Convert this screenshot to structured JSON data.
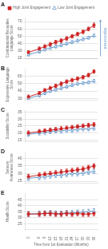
{
  "chart_data": [
    {
      "type": "line",
      "title": "A",
      "ylabel": "Combinatorial Receptive\nLanguage Score",
      "x": [
        0,
        6,
        9,
        12,
        15,
        18,
        21,
        24,
        27,
        30,
        33,
        36
      ],
      "xlim": [
        -2,
        38
      ],
      "xticks": [
        0,
        6,
        9,
        12,
        15,
        18,
        21,
        24,
        27,
        30,
        33,
        36
      ],
      "ylim": [
        20,
        75
      ],
      "yticks": [
        20,
        30,
        40,
        50,
        60,
        70
      ],
      "grid": true,
      "tick_labels": "y",
      "legend": "upper left",
      "annotations": [
        {
          "text": "Improvement",
          "color": "#6699cc"
        }
      ],
      "series": [
        {
          "name": "High Joint Engagement",
          "color": "#cc2222",
          "marker": "square",
          "values": [
            28,
            33,
            36,
            39,
            42,
            44,
            47,
            50,
            53,
            56,
            60,
            65
          ],
          "errors": [
            2.5,
            2.5,
            2.5,
            2.5,
            2.5,
            2.5,
            2.5,
            2.5,
            2.5,
            2.5,
            2.5,
            3.0
          ]
        },
        {
          "name": "Low Joint Engagement",
          "color": "#6699cc",
          "marker": "triangle-open",
          "values": [
            25,
            29,
            32,
            34,
            36,
            38,
            40,
            42,
            44,
            46,
            48,
            51
          ],
          "errors": [
            2.0,
            2.0,
            2.0,
            2.0,
            2.0,
            2.0,
            2.0,
            2.0,
            2.0,
            2.0,
            2.0,
            2.0
          ]
        }
      ]
    },
    {
      "type": "line",
      "title": "B",
      "ylabel": "Expressive Language\nScore",
      "x": [
        0,
        6,
        9,
        12,
        15,
        18,
        21,
        24,
        27,
        30,
        33,
        36
      ],
      "xlim": [
        -2,
        38
      ],
      "xticks": [
        0,
        6,
        9,
        12,
        15,
        18,
        21,
        24,
        27,
        30,
        33,
        36
      ],
      "ylim": [
        28,
        70
      ],
      "yticks": [
        30,
        40,
        50,
        60
      ],
      "grid": true,
      "tick_labels": "y",
      "series": [
        {
          "name": "High Joint Engagement",
          "color": "#cc2222",
          "marker": "square",
          "values": [
            32,
            37,
            41,
            44,
            47,
            50,
            53,
            55,
            57,
            59,
            62,
            67
          ],
          "errors": [
            2.5,
            2.5,
            2.5,
            2.5,
            2.5,
            2.5,
            2.5,
            2.5,
            2.5,
            2.5,
            2.5,
            2.5
          ]
        },
        {
          "name": "Low Joint Engagement",
          "color": "#6699cc",
          "marker": "triangle-open",
          "values": [
            30,
            34,
            37,
            40,
            42,
            44,
            46,
            48,
            50,
            51,
            52,
            54
          ],
          "errors": [
            2.0,
            2.0,
            2.0,
            2.0,
            2.0,
            2.0,
            2.0,
            2.0,
            2.0,
            2.0,
            2.0,
            2.0
          ]
        }
      ]
    },
    {
      "type": "line",
      "title": "C",
      "ylabel": "Sociability Score",
      "x": [
        0,
        6,
        9,
        12,
        15,
        18,
        21,
        24,
        27,
        30,
        33,
        36
      ],
      "xlim": [
        -2,
        38
      ],
      "xticks": [
        0,
        6,
        9,
        12,
        15,
        18,
        21,
        24,
        27,
        30,
        33,
        36
      ],
      "ylim": [
        14,
        36
      ],
      "yticks": [
        15,
        20,
        25,
        30,
        35
      ],
      "grid": true,
      "tick_labels": "y",
      "series": [
        {
          "name": "High Joint Engagement",
          "color": "#cc2222",
          "marker": "square",
          "values": [
            20,
            21,
            21.5,
            22,
            22.5,
            23,
            23.5,
            24,
            24.5,
            25,
            25.5,
            26
          ],
          "errors": [
            1.5,
            1.5,
            1.5,
            1.5,
            1.5,
            1.5,
            1.5,
            1.5,
            1.5,
            1.5,
            1.5,
            1.5
          ]
        },
        {
          "name": "Low Joint Engagement",
          "color": "#6699cc",
          "marker": "triangle-open",
          "values": [
            19,
            20,
            20.5,
            21,
            21.5,
            21.5,
            22,
            22,
            22.5,
            23,
            23,
            23.5
          ],
          "errors": [
            1.5,
            1.5,
            1.5,
            1.5,
            1.5,
            1.5,
            1.5,
            1.5,
            1.5,
            1.5,
            1.5,
            1.5
          ]
        }
      ]
    },
    {
      "type": "line",
      "title": "D",
      "ylabel": "Sensory\nAwareness Score",
      "x": [
        0,
        6,
        9,
        12,
        15,
        18,
        21,
        24,
        27,
        30,
        33,
        36
      ],
      "xlim": [
        -2,
        38
      ],
      "xticks": [
        0,
        6,
        9,
        12,
        15,
        18,
        21,
        24,
        27,
        30,
        33,
        36
      ],
      "ylim": [
        24,
        44
      ],
      "yticks": [
        25,
        30,
        35,
        40
      ],
      "grid": true,
      "tick_labels": "y",
      "series": [
        {
          "name": "High Joint Engagement",
          "color": "#cc2222",
          "marker": "square",
          "values": [
            28,
            29,
            29.5,
            30,
            30.5,
            31,
            31.5,
            32,
            32.5,
            33,
            34,
            35
          ],
          "errors": [
            1.5,
            1.5,
            1.5,
            1.5,
            1.5,
            1.5,
            1.5,
            1.5,
            1.5,
            1.5,
            1.5,
            1.5
          ]
        },
        {
          "name": "Low Joint Engagement",
          "color": "#6699cc",
          "marker": "triangle-open",
          "values": [
            27,
            27.5,
            28,
            28.5,
            29,
            29,
            29.5,
            30,
            30,
            30.5,
            31,
            31.5
          ],
          "errors": [
            1.5,
            1.5,
            1.5,
            1.5,
            1.5,
            1.5,
            1.5,
            1.5,
            1.5,
            1.5,
            1.5,
            1.5
          ]
        }
      ]
    },
    {
      "type": "line",
      "title": "E",
      "ylabel": "Health Score",
      "xlabel": "Time from 1st Evaluation (Months)",
      "x": [
        0,
        6,
        9,
        12,
        15,
        18,
        21,
        24,
        27,
        30,
        33,
        36
      ],
      "xlim": [
        -2,
        38
      ],
      "xticks": [
        0,
        6,
        9,
        12,
        15,
        18,
        21,
        24,
        27,
        30,
        33,
        36
      ],
      "ylim": [
        20,
        50
      ],
      "yticks": [
        25,
        30,
        35,
        40,
        45
      ],
      "grid": true,
      "series": [
        {
          "name": "High Joint Engagement",
          "color": "#cc2222",
          "marker": "square",
          "values": [
            33,
            33,
            33.5,
            33.5,
            33,
            33,
            33.5,
            33,
            33.5,
            33,
            33,
            33.5
          ],
          "errors": [
            2.0,
            2.0,
            2.0,
            2.0,
            2.0,
            2.0,
            2.0,
            2.0,
            2.0,
            2.0,
            2.0,
            2.0
          ]
        },
        {
          "name": "Low Joint Engagement",
          "color": "#6699cc",
          "marker": "triangle-open",
          "values": [
            33,
            33.5,
            33.5,
            34,
            33.5,
            33.5,
            34,
            34,
            34.5,
            34.5,
            35,
            35.5
          ],
          "errors": [
            2.0,
            2.0,
            2.0,
            2.0,
            2.0,
            2.0,
            2.0,
            2.0,
            2.0,
            2.0,
            2.0,
            2.0
          ]
        }
      ]
    }
  ]
}
